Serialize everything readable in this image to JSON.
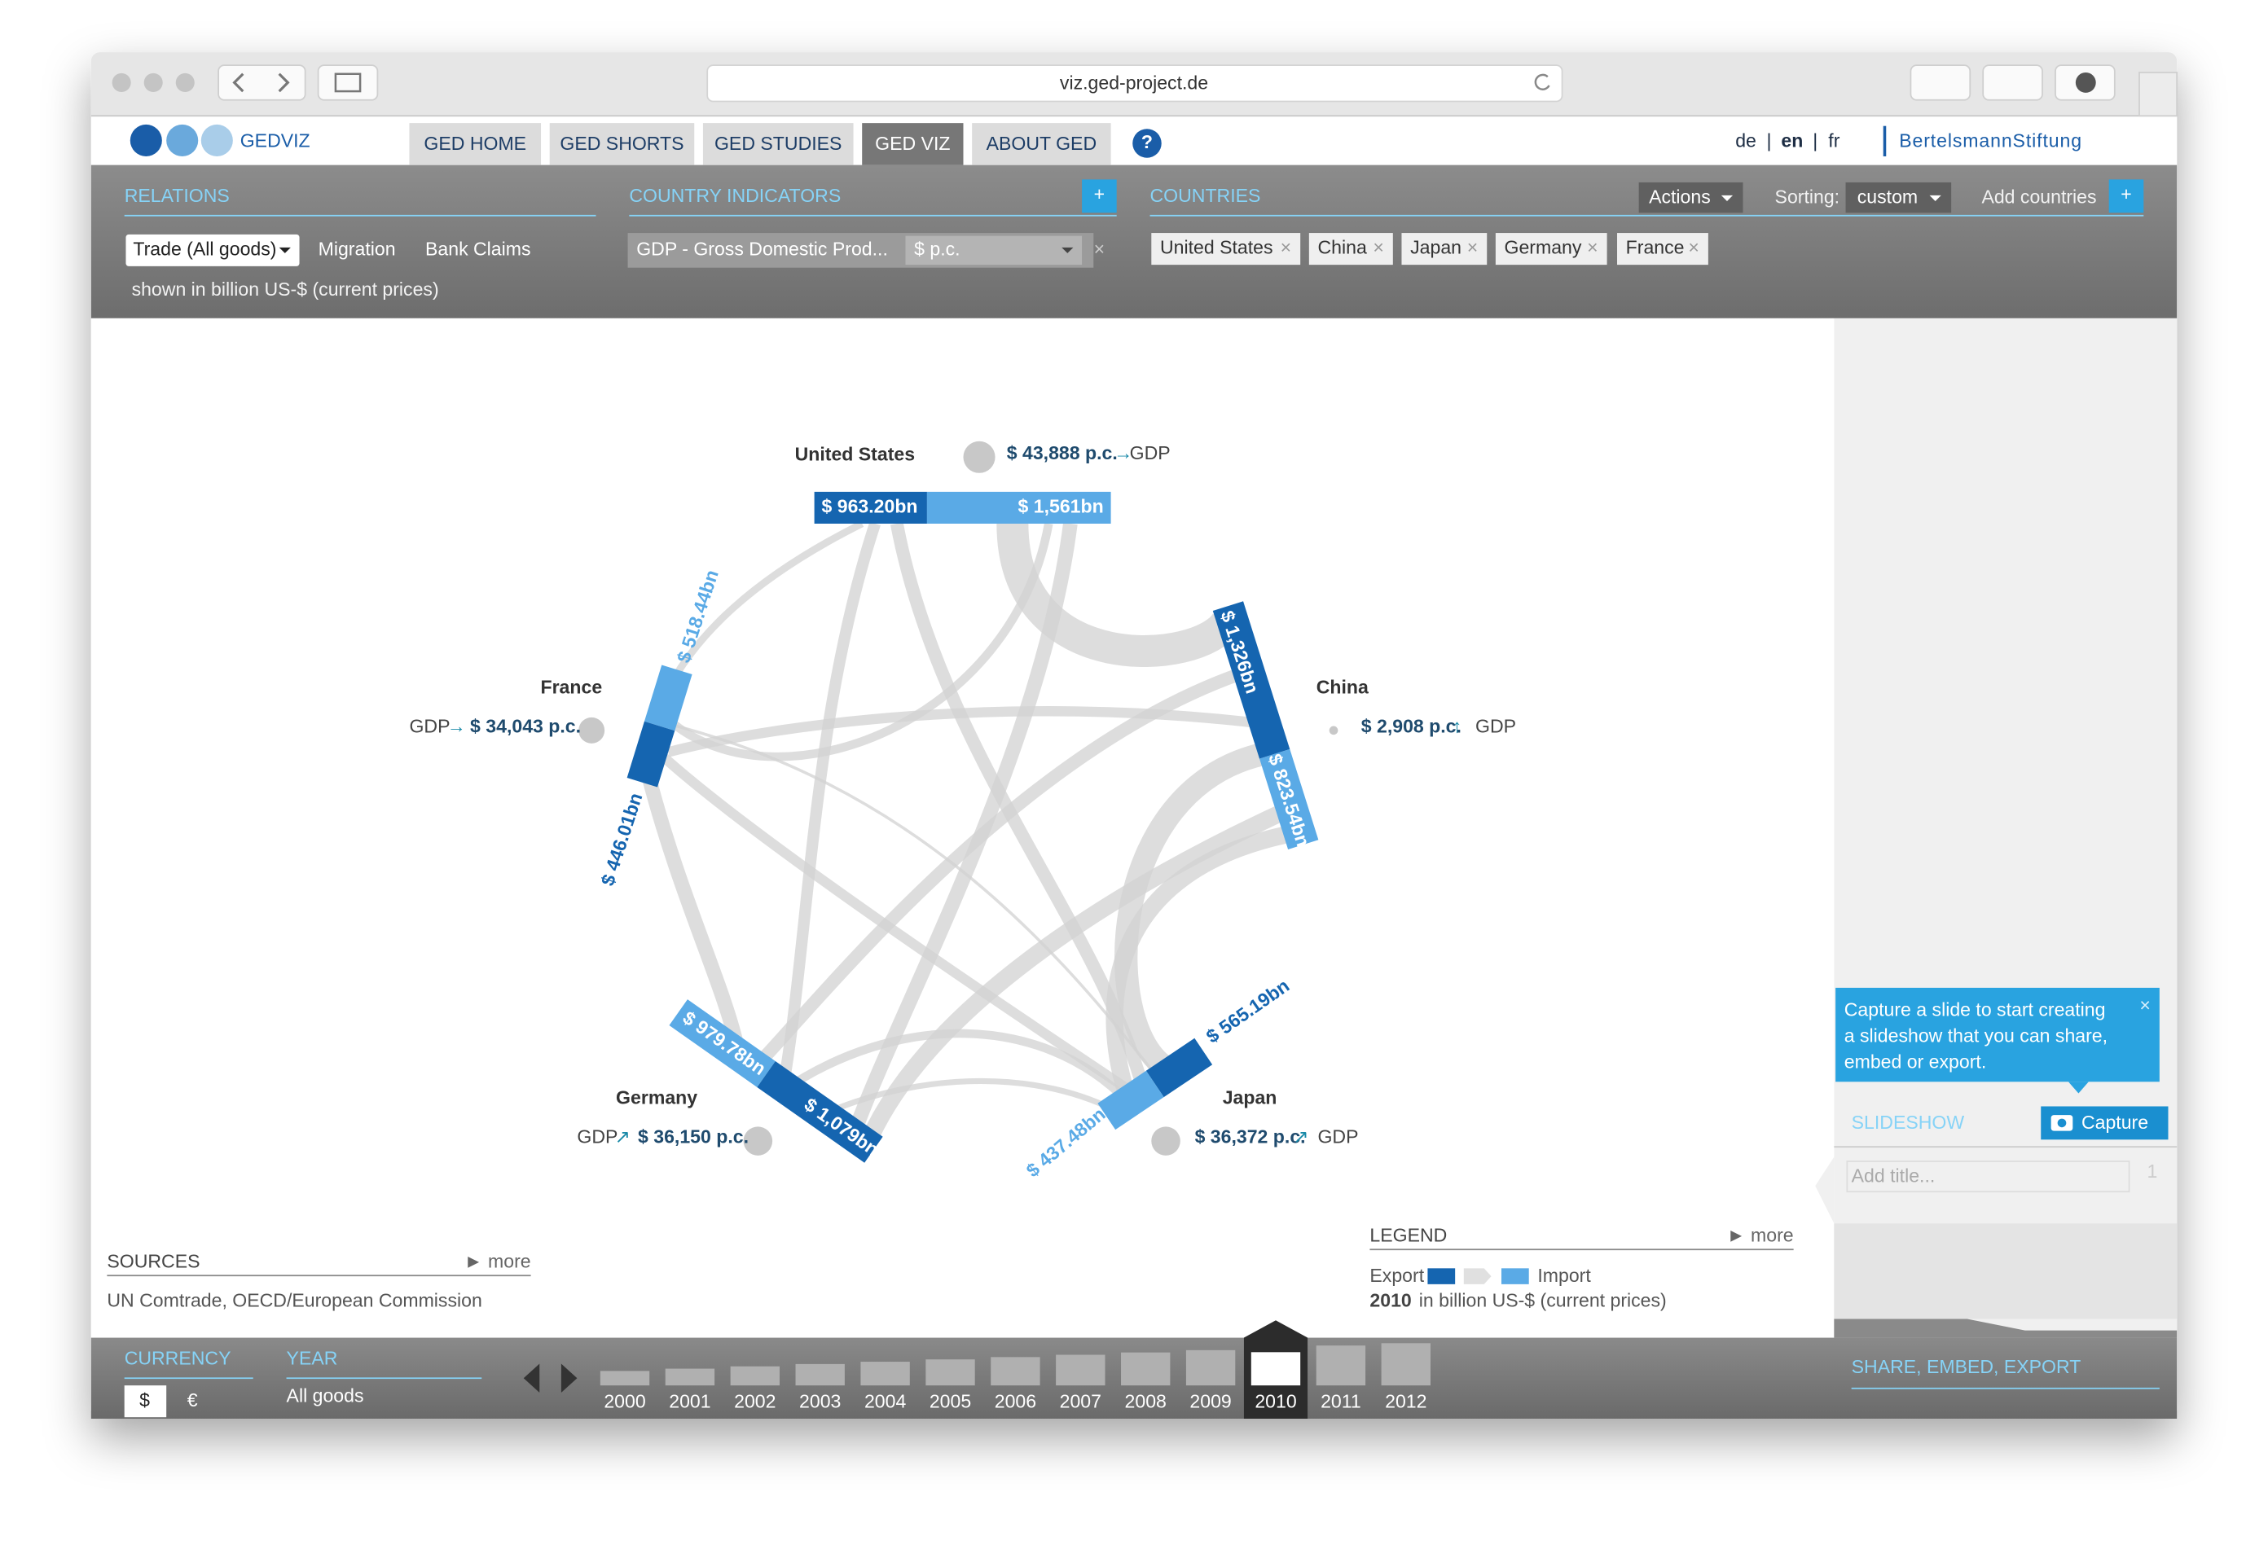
{
  "browser": {
    "url": "viz.ged-project.de"
  },
  "nav": {
    "logo": "GEDVIZ",
    "tabs": [
      "GED HOME",
      "GED SHORTS",
      "GED STUDIES",
      "GED VIZ",
      "ABOUT GED"
    ],
    "help": "?",
    "languages": [
      "de",
      "en",
      "fr"
    ],
    "separators": [
      "|",
      "|"
    ],
    "sponsor": "BertelsmannStiftung"
  },
  "relations": {
    "title": "RELATIONS",
    "options": [
      "Trade (All goods)",
      "Migration",
      "Bank Claims"
    ],
    "note": "shown in billion US-$ (current prices)"
  },
  "indicators": {
    "title": "COUNTRY INDICATORS",
    "add": "+",
    "selected": "GDP - Gross Domestic Prod...",
    "unit": "$ p.c.",
    "remove": "×"
  },
  "countries": {
    "title": "COUNTRIES",
    "actions": "Actions",
    "sorting_label": "Sorting:",
    "sorting": "custom",
    "add_label": "Add countries",
    "add": "+",
    "remove": "×",
    "list": [
      "United States",
      "China",
      "Japan",
      "Germany",
      "France"
    ]
  },
  "chart": {
    "nodes": [
      {
        "name": "United States",
        "gdp": "$ 43,888 p.c.",
        "trend": "→",
        "indicator": "GDP",
        "export": "$ 963.20bn",
        "import": "$ 1,561bn"
      },
      {
        "name": "China",
        "gdp": "$ 2,908 p.c.",
        "trend": "↑",
        "indicator": "GDP",
        "export": "$ 1,326bn",
        "import": "$ 823.54bn"
      },
      {
        "name": "Japan",
        "gdp": "$ 36,372 p.c.",
        "trend": "↗",
        "indicator": "GDP",
        "export": "$ 565.19bn",
        "import": "$ 437.48bn"
      },
      {
        "name": "Germany",
        "gdp": "$ 36,150 p.c.",
        "trend": "↗",
        "indicator": "GDP",
        "export": "$ 1,079bn",
        "import": "$ 979.78bn"
      },
      {
        "name": "France",
        "gdp": "$ 34,043 p.c.",
        "trend": "→",
        "indicator": "GDP",
        "export": "$ 446.01bn",
        "import": "$ 518.44bn"
      }
    ]
  },
  "sources": {
    "title": "SOURCES",
    "more": "► more",
    "text": "UN Comtrade, OECD/European Commission"
  },
  "legend": {
    "title": "LEGEND",
    "more": "► more",
    "export": "Export",
    "import": "Import",
    "year": "2010",
    "note": "in billion US-$ (current prices)"
  },
  "timeline": {
    "currency_title": "CURRENCY",
    "currencies": [
      "$",
      "€"
    ],
    "year_title": "YEAR",
    "year_note": "All goods",
    "years": [
      "2000",
      "2001",
      "2002",
      "2003",
      "2004",
      "2005",
      "2006",
      "2007",
      "2008",
      "2009",
      "2010",
      "2011",
      "2012"
    ]
  },
  "slideshow": {
    "tip": [
      "Capture a slide to start creating",
      "a slideshow that you can share,",
      "embed or export."
    ],
    "close": "×",
    "title": "SLIDESHOW",
    "capture": "Capture",
    "placeholder": "Add title...",
    "count": "1",
    "share": "SHARE, EMBED, EXPORT"
  }
}
